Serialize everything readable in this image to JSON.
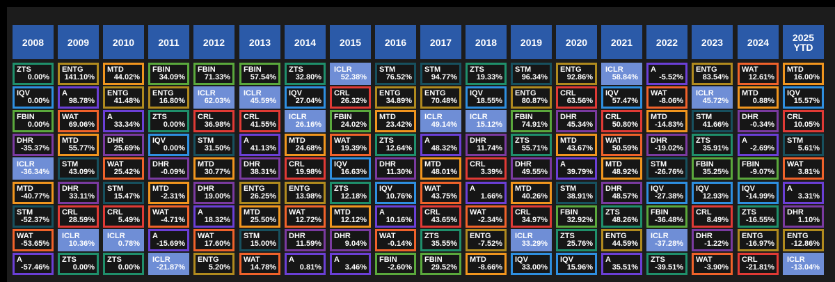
{
  "colors": {
    "ZTS": "#1f8f6b",
    "ENTG": "#b08a1e",
    "MTD": "#f0951e",
    "FBIN": "#5aa83c",
    "ICLR": "#6f8ed6",
    "STM": "#17505e",
    "A": "#6b3fd6",
    "IQV": "#2e8fe0",
    "CRL": "#e03a35",
    "WAT": "#f0622a",
    "DHR": "#7a3aa0",
    "header_bg": "#2b5aa8",
    "panel_bg": "#1c1c1c",
    "cell_bg": "#161616"
  },
  "chart_data": {
    "type": "table",
    "highlight_ticker": "ICLR",
    "years": [
      "2008",
      "2009",
      "2010",
      "2011",
      "2012",
      "2013",
      "2014",
      "2015",
      "2016",
      "2017",
      "2018",
      "2019",
      "2020",
      "2021",
      "2022",
      "2023",
      "2024",
      "2025\nYTD"
    ],
    "columns": [
      [
        {
          "t": "ZTS",
          "v": "0.00%"
        },
        {
          "t": "IQV",
          "v": "0.00%"
        },
        {
          "t": "FBIN",
          "v": "0.00%"
        },
        {
          "t": "DHR",
          "v": "-35.37%"
        },
        {
          "t": "ICLR",
          "v": "-36.34%"
        },
        {
          "t": "MTD",
          "v": "-40.77%"
        },
        {
          "t": "STM",
          "v": "-52.37%"
        },
        {
          "t": "WAT",
          "v": "-53.65%"
        },
        {
          "t": "A",
          "v": "-57.46%"
        }
      ],
      [
        {
          "t": "ENTG",
          "v": "141.10%"
        },
        {
          "t": "A",
          "v": "98.78%"
        },
        {
          "t": "WAT",
          "v": "69.06%"
        },
        {
          "t": "MTD",
          "v": "55.77%"
        },
        {
          "t": "STM",
          "v": "43.09%"
        },
        {
          "t": "DHR",
          "v": "33.11%"
        },
        {
          "t": "CRL",
          "v": "28.59%"
        },
        {
          "t": "ICLR",
          "v": "10.36%"
        },
        {
          "t": "ZTS",
          "v": "0.00%"
        }
      ],
      [
        {
          "t": "MTD",
          "v": "44.02%"
        },
        {
          "t": "ENTG",
          "v": "41.48%"
        },
        {
          "t": "A",
          "v": "33.34%"
        },
        {
          "t": "DHR",
          "v": "25.69%"
        },
        {
          "t": "WAT",
          "v": "25.42%"
        },
        {
          "t": "STM",
          "v": "15.47%"
        },
        {
          "t": "CRL",
          "v": "5.49%"
        },
        {
          "t": "ICLR",
          "v": "0.78%"
        },
        {
          "t": "ZTS",
          "v": "0.00%"
        }
      ],
      [
        {
          "t": "FBIN",
          "v": "34.09%"
        },
        {
          "t": "ENTG",
          "v": "16.80%"
        },
        {
          "t": "ZTS",
          "v": "0.00%"
        },
        {
          "t": "IQV",
          "v": "0.00%"
        },
        {
          "t": "DHR",
          "v": "-0.09%"
        },
        {
          "t": "MTD",
          "v": "-2.31%"
        },
        {
          "t": "WAT",
          "v": "-4.71%"
        },
        {
          "t": "A",
          "v": "-15.69%"
        },
        {
          "t": "ICLR",
          "v": "-21.87%"
        }
      ],
      [
        {
          "t": "FBIN",
          "v": "71.33%"
        },
        {
          "t": "ICLR",
          "v": "62.03%"
        },
        {
          "t": "CRL",
          "v": "36.98%"
        },
        {
          "t": "STM",
          "v": "31.50%"
        },
        {
          "t": "MTD",
          "v": "30.77%"
        },
        {
          "t": "DHR",
          "v": "19.00%"
        },
        {
          "t": "A",
          "v": "18.32%"
        },
        {
          "t": "WAT",
          "v": "17.60%"
        },
        {
          "t": "ENTG",
          "v": "5.20%"
        }
      ],
      [
        {
          "t": "FBIN",
          "v": "57.54%"
        },
        {
          "t": "ICLR",
          "v": "45.59%"
        },
        {
          "t": "CRL",
          "v": "41.55%"
        },
        {
          "t": "A",
          "v": "41.13%"
        },
        {
          "t": "DHR",
          "v": "38.31%"
        },
        {
          "t": "ENTG",
          "v": "26.25%"
        },
        {
          "t": "MTD",
          "v": "25.50%"
        },
        {
          "t": "STM",
          "v": "15.00%"
        },
        {
          "t": "WAT",
          "v": "14.78%"
        }
      ],
      [
        {
          "t": "ZTS",
          "v": "32.80%"
        },
        {
          "t": "IQV",
          "v": "27.04%"
        },
        {
          "t": "ICLR",
          "v": "26.16%"
        },
        {
          "t": "MTD",
          "v": "24.68%"
        },
        {
          "t": "CRL",
          "v": "19.98%"
        },
        {
          "t": "ENTG",
          "v": "13.98%"
        },
        {
          "t": "WAT",
          "v": "12.72%"
        },
        {
          "t": "DHR",
          "v": "11.59%"
        },
        {
          "t": "A",
          "v": "0.81%"
        }
      ],
      [
        {
          "t": "ICLR",
          "v": "52.38%"
        },
        {
          "t": "CRL",
          "v": "26.32%"
        },
        {
          "t": "FBIN",
          "v": "24.02%"
        },
        {
          "t": "WAT",
          "v": "19.39%"
        },
        {
          "t": "IQV",
          "v": "16.63%"
        },
        {
          "t": "ZTS",
          "v": "12.18%"
        },
        {
          "t": "MTD",
          "v": "12.12%"
        },
        {
          "t": "DHR",
          "v": "9.04%"
        },
        {
          "t": "A",
          "v": "3.46%"
        }
      ],
      [
        {
          "t": "STM",
          "v": "76.52%"
        },
        {
          "t": "ENTG",
          "v": "34.89%"
        },
        {
          "t": "MTD",
          "v": "23.42%"
        },
        {
          "t": "ZTS",
          "v": "12.64%"
        },
        {
          "t": "DHR",
          "v": "11.30%"
        },
        {
          "t": "IQV",
          "v": "10.76%"
        },
        {
          "t": "A",
          "v": "10.16%"
        },
        {
          "t": "WAT",
          "v": "-0.14%"
        },
        {
          "t": "FBIN",
          "v": "-2.60%"
        }
      ],
      [
        {
          "t": "STM",
          "v": "94.77%"
        },
        {
          "t": "ENTG",
          "v": "70.48%"
        },
        {
          "t": "ICLR",
          "v": "49.14%"
        },
        {
          "t": "A",
          "v": "48.32%"
        },
        {
          "t": "MTD",
          "v": "48.01%"
        },
        {
          "t": "WAT",
          "v": "43.75%"
        },
        {
          "t": "CRL",
          "v": "43.65%"
        },
        {
          "t": "ZTS",
          "v": "35.55%"
        },
        {
          "t": "FBIN",
          "v": "29.52%"
        }
      ],
      [
        {
          "t": "ZTS",
          "v": "19.33%"
        },
        {
          "t": "IQV",
          "v": "18.55%"
        },
        {
          "t": "ICLR",
          "v": "15.12%"
        },
        {
          "t": "DHR",
          "v": "11.74%"
        },
        {
          "t": "CRL",
          "v": "3.39%"
        },
        {
          "t": "A",
          "v": "1.66%"
        },
        {
          "t": "WAT",
          "v": "-2.34%"
        },
        {
          "t": "ENTG",
          "v": "-7.52%"
        },
        {
          "t": "MTD",
          "v": "-8.66%"
        }
      ],
      [
        {
          "t": "STM",
          "v": "96.34%"
        },
        {
          "t": "ENTG",
          "v": "80.87%"
        },
        {
          "t": "FBIN",
          "v": "74.91%"
        },
        {
          "t": "ZTS",
          "v": "55.71%"
        },
        {
          "t": "DHR",
          "v": "49.55%"
        },
        {
          "t": "MTD",
          "v": "40.26%"
        },
        {
          "t": "CRL",
          "v": "34.97%"
        },
        {
          "t": "ICLR",
          "v": "33.29%"
        },
        {
          "t": "IQV",
          "v": "33.00%"
        }
      ],
      [
        {
          "t": "ENTG",
          "v": "92.86%"
        },
        {
          "t": "CRL",
          "v": "63.56%"
        },
        {
          "t": "DHR",
          "v": "45.34%"
        },
        {
          "t": "MTD",
          "v": "43.67%"
        },
        {
          "t": "A",
          "v": "39.79%"
        },
        {
          "t": "STM",
          "v": "38.91%"
        },
        {
          "t": "FBIN",
          "v": "32.92%"
        },
        {
          "t": "ZTS",
          "v": "25.76%"
        },
        {
          "t": "IQV",
          "v": "15.96%"
        }
      ],
      [
        {
          "t": "ICLR",
          "v": "58.84%"
        },
        {
          "t": "IQV",
          "v": "57.47%"
        },
        {
          "t": "CRL",
          "v": "50.80%"
        },
        {
          "t": "WAT",
          "v": "50.59%"
        },
        {
          "t": "MTD",
          "v": "48.92%"
        },
        {
          "t": "DHR",
          "v": "48.57%"
        },
        {
          "t": "ZTS",
          "v": "48.26%"
        },
        {
          "t": "ENTG",
          "v": "44.59%"
        },
        {
          "t": "A",
          "v": "35.51%"
        }
      ],
      [
        {
          "t": "A",
          "v": "-5.52%"
        },
        {
          "t": "WAT",
          "v": "-8.06%"
        },
        {
          "t": "MTD",
          "v": "-14.83%"
        },
        {
          "t": "DHR",
          "v": "-19.02%"
        },
        {
          "t": "STM",
          "v": "-26.76%"
        },
        {
          "t": "IQV",
          "v": "-27.38%"
        },
        {
          "t": "FBIN",
          "v": "-36.48%"
        },
        {
          "t": "ICLR",
          "v": "-37.28%"
        },
        {
          "t": "ZTS",
          "v": "-39.51%"
        }
      ],
      [
        {
          "t": "ENTG",
          "v": "83.54%"
        },
        {
          "t": "ICLR",
          "v": "45.72%"
        },
        {
          "t": "STM",
          "v": "41.66%"
        },
        {
          "t": "ZTS",
          "v": "35.91%"
        },
        {
          "t": "FBIN",
          "v": "35.25%"
        },
        {
          "t": "IQV",
          "v": "12.93%"
        },
        {
          "t": "CRL",
          "v": "8.49%"
        },
        {
          "t": "DHR",
          "v": "-1.22%"
        },
        {
          "t": "WAT",
          "v": "-3.90%"
        }
      ],
      [
        {
          "t": "WAT",
          "v": "12.61%"
        },
        {
          "t": "MTD",
          "v": "0.88%"
        },
        {
          "t": "DHR",
          "v": "-0.34%"
        },
        {
          "t": "A",
          "v": "-2.69%"
        },
        {
          "t": "FBIN",
          "v": "-9.07%"
        },
        {
          "t": "IQV",
          "v": "-14.99%"
        },
        {
          "t": "ZTS",
          "v": "-16.55%"
        },
        {
          "t": "ENTG",
          "v": "-16.97%"
        },
        {
          "t": "CRL",
          "v": "-21.81%"
        }
      ],
      [
        {
          "t": "MTD",
          "v": "16.00%"
        },
        {
          "t": "IQV",
          "v": "15.57%"
        },
        {
          "t": "CRL",
          "v": "10.05%"
        },
        {
          "t": "STM",
          "v": "5.61%"
        },
        {
          "t": "WAT",
          "v": "3.81%"
        },
        {
          "t": "A",
          "v": "3.31%"
        },
        {
          "t": "DHR",
          "v": "1.10%"
        },
        {
          "t": "ENTG",
          "v": "-12.86%"
        },
        {
          "t": "ICLR",
          "v": "-13.04%"
        }
      ]
    ]
  }
}
